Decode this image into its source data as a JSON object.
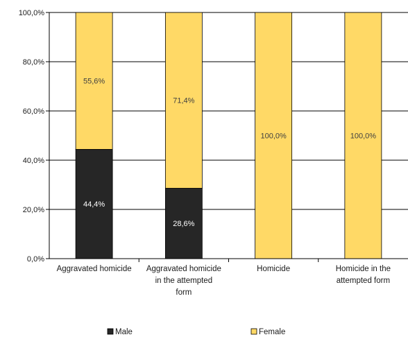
{
  "chart_data": {
    "type": "bar",
    "stacked": true,
    "categories": [
      [
        "Aggravated homicide"
      ],
      [
        "Aggravated homicide",
        "in the attempted",
        "form"
      ],
      [
        "Homicide"
      ],
      [
        "Homicide in the",
        "attempted form"
      ]
    ],
    "series": [
      {
        "name": "Male",
        "color": "#262626",
        "label_color": "#ffffff",
        "values": [
          44.4,
          28.6,
          0,
          0
        ],
        "labels": [
          "44,4%",
          "28,6%",
          "",
          ""
        ]
      },
      {
        "name": "Female",
        "color": "#ffd966",
        "label_color": "#404040",
        "values": [
          55.6,
          71.4,
          100,
          100
        ],
        "labels": [
          "55,6%",
          "71,4%",
          "100,0%",
          "100,0%"
        ]
      }
    ],
    "ylim": [
      0,
      100
    ],
    "yticks": [
      "0,0%",
      "20,0%",
      "40,0%",
      "60,0%",
      "80,0%",
      "100,0%"
    ],
    "grid": true,
    "legend_position": "bottom"
  }
}
